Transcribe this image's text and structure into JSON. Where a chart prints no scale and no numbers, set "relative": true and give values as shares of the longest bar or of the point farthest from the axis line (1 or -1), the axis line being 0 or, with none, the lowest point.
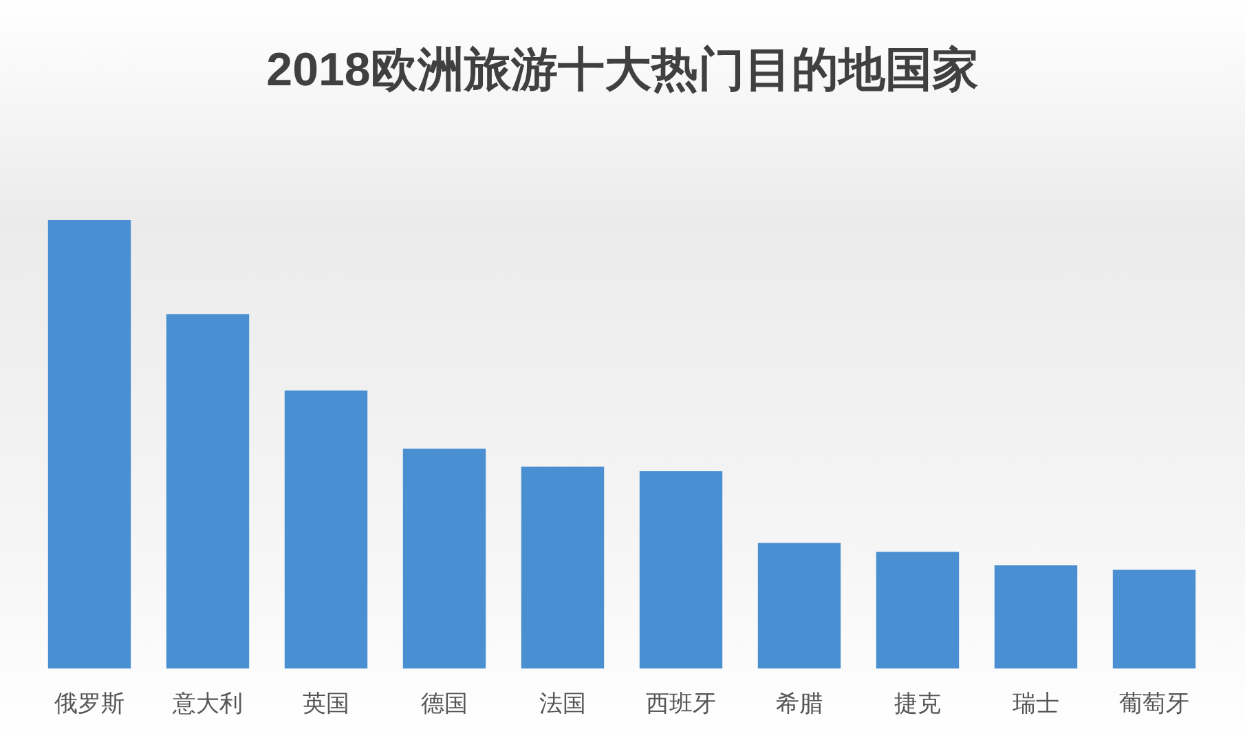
{
  "chart_data": {
    "type": "bar",
    "title": "2018欧洲旅游十大热门目的地国家",
    "categories": [
      "俄罗斯",
      "意大利",
      "英国",
      "德国",
      "法国",
      "西班牙",
      "希腊",
      "捷克",
      "瑞士",
      "葡萄牙"
    ],
    "values": [
      1,
      0.79,
      0.62,
      0.49,
      0.45,
      0.44,
      0.28,
      0.26,
      0.23,
      0.22
    ],
    "color": "#4a8fd2",
    "relative": true
  }
}
